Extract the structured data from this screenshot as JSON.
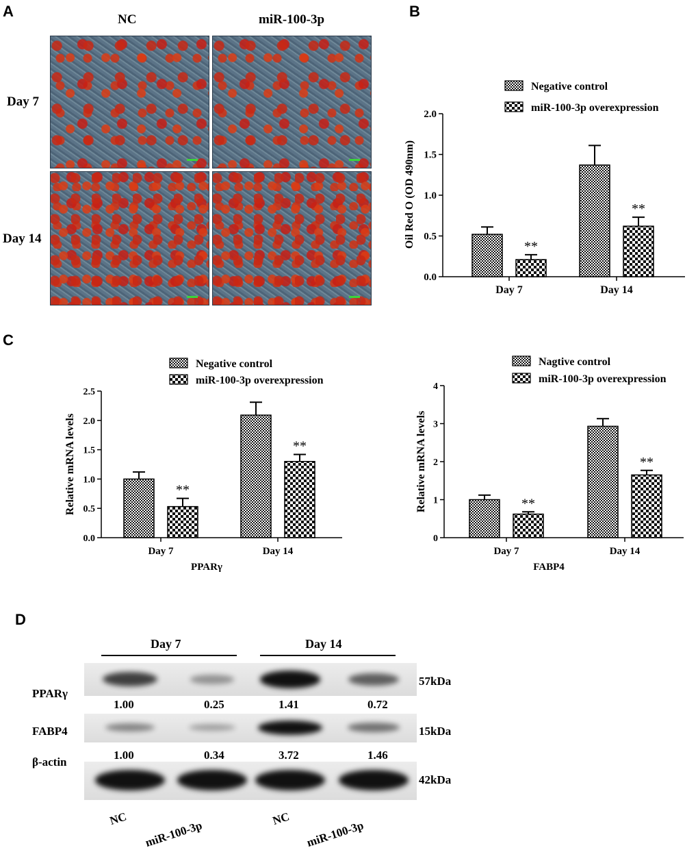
{
  "panels": {
    "a": "A",
    "b": "B",
    "c": "C",
    "d": "D"
  },
  "panel_a": {
    "columns": [
      "NC",
      "miR-100-3p"
    ],
    "rows": [
      "Day 7",
      "Day 14"
    ]
  },
  "panel_d": {
    "groups": [
      "Day 7",
      "Day 14"
    ],
    "rows": [
      "PPARγ",
      "FABP4",
      "β-actin"
    ],
    "sizes": [
      "57kDa",
      "15kDa",
      "42kDa"
    ],
    "ppar_quant": [
      "1.00",
      "0.25",
      "1.41",
      "0.72"
    ],
    "fabp4_quant": [
      "1.00",
      "0.34",
      "3.72",
      "1.46"
    ],
    "lanes": [
      "NC",
      "miR-100-3p",
      "NC",
      "miR-100-3p"
    ],
    "band_intensity": {
      "ppar": [
        1.0,
        0.25,
        1.41,
        0.72
      ],
      "fabp4": [
        1.0,
        0.34,
        3.72,
        1.46
      ],
      "actin": [
        1,
        1,
        1,
        1
      ]
    }
  },
  "chart_data": [
    {
      "id": "B",
      "type": "bar",
      "categories": [
        "Day 7",
        "Day 14"
      ],
      "series": [
        {
          "name": "Negative control",
          "values": [
            0.52,
            1.37
          ],
          "errors": [
            0.09,
            0.24
          ],
          "pattern": "fine-check"
        },
        {
          "name": "miR-100-3p overexpression",
          "values": [
            0.21,
            0.62
          ],
          "errors": [
            0.06,
            0.11
          ],
          "pattern": "coarse-check"
        }
      ],
      "annotations": [
        {
          "text": "**",
          "series": 1,
          "category": 0
        },
        {
          "text": "**",
          "series": 1,
          "category": 1
        }
      ],
      "xlabel": "",
      "ylabel": "Oil Red O (OD 490nm)",
      "ylim": [
        0,
        2.0
      ],
      "yticks": [
        "0.0",
        "0.5",
        "1.0",
        "1.5",
        "2.0"
      ]
    },
    {
      "id": "C1",
      "type": "bar",
      "categories": [
        "Day 7",
        "Day 14"
      ],
      "series": [
        {
          "name": "Negative control",
          "values": [
            1.0,
            2.09
          ],
          "errors": [
            0.12,
            0.22
          ],
          "pattern": "fine-check"
        },
        {
          "name": "miR-100-3p overexpression",
          "values": [
            0.53,
            1.3
          ],
          "errors": [
            0.14,
            0.12
          ],
          "pattern": "coarse-check"
        }
      ],
      "annotations": [
        {
          "text": "**",
          "series": 1,
          "category": 0
        },
        {
          "text": "**",
          "series": 1,
          "category": 1
        }
      ],
      "xlabel": "PPARγ",
      "ylabel": "Relative mRNA levels",
      "ylim": [
        0,
        2.5
      ],
      "yticks": [
        "0.0",
        "0.5",
        "1.0",
        "1.5",
        "2.0",
        "2.5"
      ]
    },
    {
      "id": "C2",
      "type": "bar",
      "categories": [
        "Day 7",
        "Day 14"
      ],
      "series": [
        {
          "name": "Nagtive control",
          "values": [
            1.0,
            2.93
          ],
          "errors": [
            0.12,
            0.2
          ],
          "pattern": "fine-check"
        },
        {
          "name": "miR-100-3p overexpression",
          "values": [
            0.62,
            1.65
          ],
          "errors": [
            0.06,
            0.12
          ],
          "pattern": "coarse-check"
        }
      ],
      "annotations": [
        {
          "text": "**",
          "series": 1,
          "category": 0
        },
        {
          "text": "**",
          "series": 1,
          "category": 1
        }
      ],
      "xlabel": "FABP4",
      "ylabel": "Relative mRNA levels",
      "ylim": [
        0,
        4
      ],
      "yticks": [
        "0",
        "1",
        "2",
        "3",
        "4"
      ]
    }
  ]
}
